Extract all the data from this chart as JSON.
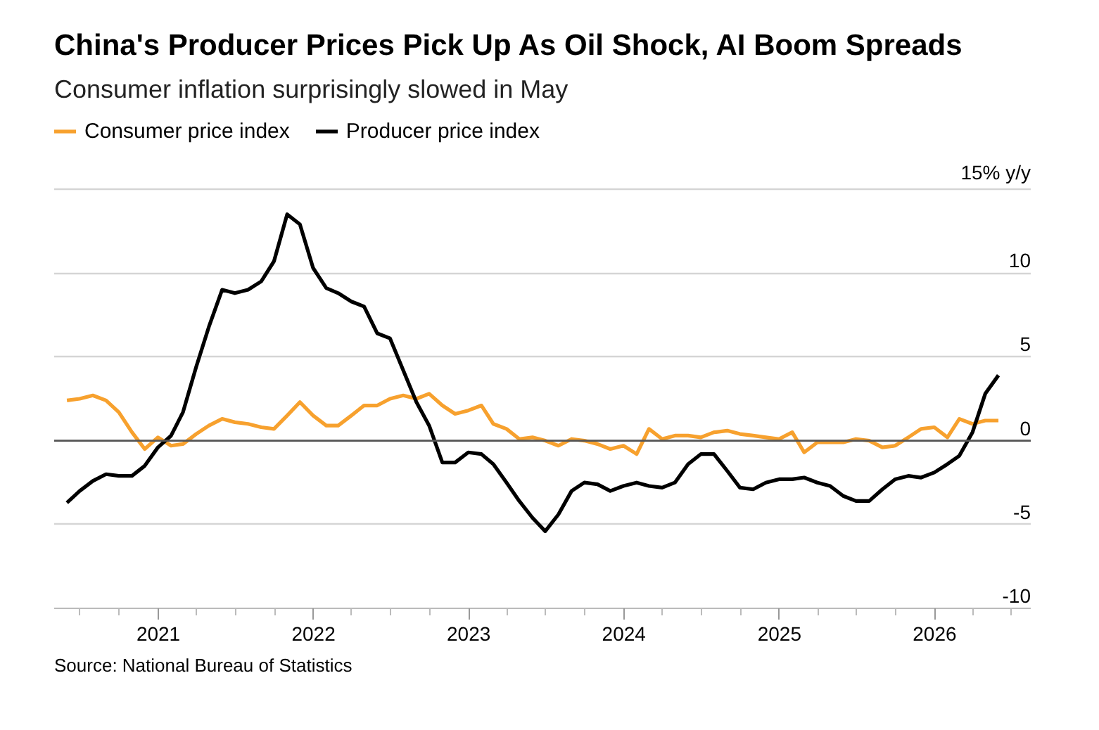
{
  "chart_data": {
    "type": "line",
    "title": "China's Producer Prices Pick Up As Oil Shock, AI Boom Spreads",
    "subtitle": "Consumer inflation surprisingly slowed in May",
    "annotations": [
      "Source: National Bureau of Statistics"
    ],
    "x": [
      "2020-05-31",
      "2020-06-30",
      "2020-07-31",
      "2020-08-31",
      "2020-09-30",
      "2020-10-31",
      "2020-11-30",
      "2020-12-31",
      "2021-01-31",
      "2021-02-28",
      "2021-03-31",
      "2021-04-30",
      "2021-05-31",
      "2021-06-30",
      "2021-07-31",
      "2021-08-31",
      "2021-09-30",
      "2021-10-31",
      "2021-11-30",
      "2021-12-31",
      "2022-01-31",
      "2022-02-28",
      "2022-03-31",
      "2022-04-30",
      "2022-05-31",
      "2022-06-30",
      "2022-07-31",
      "2022-08-31",
      "2022-09-30",
      "2022-10-31",
      "2022-11-30",
      "2022-12-31",
      "2023-01-31",
      "2023-02-28",
      "2023-03-31",
      "2023-04-30",
      "2023-05-31",
      "2023-06-30",
      "2023-07-31",
      "2023-08-31",
      "2023-09-30",
      "2023-10-31",
      "2023-11-30",
      "2023-12-31",
      "2024-01-31",
      "2024-02-29",
      "2024-03-31",
      "2024-04-30",
      "2024-05-31",
      "2024-06-30",
      "2024-07-31",
      "2024-08-31",
      "2024-09-30",
      "2024-10-31",
      "2024-11-30",
      "2024-12-31",
      "2025-01-31",
      "2025-02-28",
      "2025-03-31",
      "2025-04-30",
      "2025-05-31",
      "2025-06-30",
      "2025-07-31",
      "2025-08-31",
      "2025-09-30",
      "2025-10-31",
      "2025-11-30",
      "2025-12-31",
      "2026-01-31",
      "2026-02-28",
      "2026-03-31",
      "2026-04-30",
      "2026-05-31"
    ],
    "series": [
      {
        "name": "Consumer price index",
        "color": "#f7a12e",
        "values": [
          2.4,
          2.5,
          2.7,
          2.4,
          1.7,
          0.5,
          -0.5,
          0.2,
          -0.3,
          -0.2,
          0.4,
          0.9,
          1.3,
          1.1,
          1.0,
          0.8,
          0.7,
          1.5,
          2.3,
          1.5,
          0.9,
          0.9,
          1.5,
          2.1,
          2.1,
          2.5,
          2.7,
          2.5,
          2.8,
          2.1,
          1.6,
          1.8,
          2.1,
          1.0,
          0.7,
          0.1,
          0.2,
          0.0,
          -0.3,
          0.1,
          0.0,
          -0.2,
          -0.5,
          -0.3,
          -0.8,
          0.7,
          0.1,
          0.3,
          0.3,
          0.2,
          0.5,
          0.6,
          0.4,
          0.3,
          0.2,
          0.1,
          0.5,
          -0.7,
          -0.1,
          -0.1,
          -0.1,
          0.1,
          0.0,
          -0.4,
          -0.3,
          0.2,
          0.7,
          0.8,
          0.2,
          1.3,
          1.0,
          1.2,
          1.2
        ]
      },
      {
        "name": "Producer price index",
        "color": "#000000",
        "values": [
          -3.7,
          -3.0,
          -2.4,
          -2.0,
          -2.1,
          -2.1,
          -1.5,
          -0.4,
          0.3,
          1.7,
          4.4,
          6.8,
          9.0,
          8.8,
          9.0,
          9.5,
          10.7,
          13.5,
          12.9,
          10.3,
          9.1,
          8.8,
          8.3,
          8.0,
          6.4,
          6.1,
          4.2,
          2.3,
          0.9,
          -1.3,
          -1.3,
          -0.7,
          -0.8,
          -1.4,
          -2.5,
          -3.6,
          -4.6,
          -5.4,
          -4.4,
          -3.0,
          -2.5,
          -2.6,
          -3.0,
          -2.7,
          -2.5,
          -2.7,
          -2.8,
          -2.5,
          -1.4,
          -0.8,
          -0.8,
          -1.8,
          -2.8,
          -2.9,
          -2.5,
          -2.3,
          -2.3,
          -2.2,
          -2.5,
          -2.7,
          -3.3,
          -3.6,
          -3.6,
          -2.9,
          -2.3,
          -2.1,
          -2.2,
          -1.9,
          -1.4,
          -0.9,
          0.5,
          2.8,
          3.9
        ]
      }
    ],
    "xlim": [
      "2020-05-01",
      "2026-08-15"
    ],
    "xticks": [
      "2021",
      "2022",
      "2023",
      "2024",
      "2025",
      "2026",
      {
        "value": "2020-07",
        "label": null
      },
      {
        "value": "2020-10",
        "label": null
      },
      {
        "value": "2021-04",
        "label": null
      },
      {
        "value": "2021-07",
        "label": null
      },
      {
        "value": "2021-10",
        "label": null
      },
      {
        "value": "2022-04",
        "label": null
      },
      {
        "value": "2022-07",
        "label": null
      },
      {
        "value": "2022-10",
        "label": null
      },
      {
        "value": "2023-04",
        "label": null
      },
      {
        "value": "2023-07",
        "label": null
      },
      {
        "value": "2023-10",
        "label": null
      },
      {
        "value": "2024-04",
        "label": null
      },
      {
        "value": "2024-07",
        "label": null
      },
      {
        "value": "2024-10",
        "label": null
      },
      {
        "value": "2025-04",
        "label": null
      },
      {
        "value": "2025-07",
        "label": null
      },
      {
        "value": "2025-10",
        "label": null
      },
      {
        "value": "2026-04",
        "label": null
      },
      {
        "value": "2026-07",
        "label": null
      }
    ],
    "ylim": [
      -10,
      15
    ],
    "yticks": [
      -10,
      -5,
      0,
      5,
      10,
      {
        "value": 15,
        "label": "15% y/y"
      }
    ],
    "ref_lines": [
      {
        "axis": "y",
        "value": 0,
        "color": "#555555"
      }
    ],
    "grid": "y",
    "legend": "top left"
  }
}
